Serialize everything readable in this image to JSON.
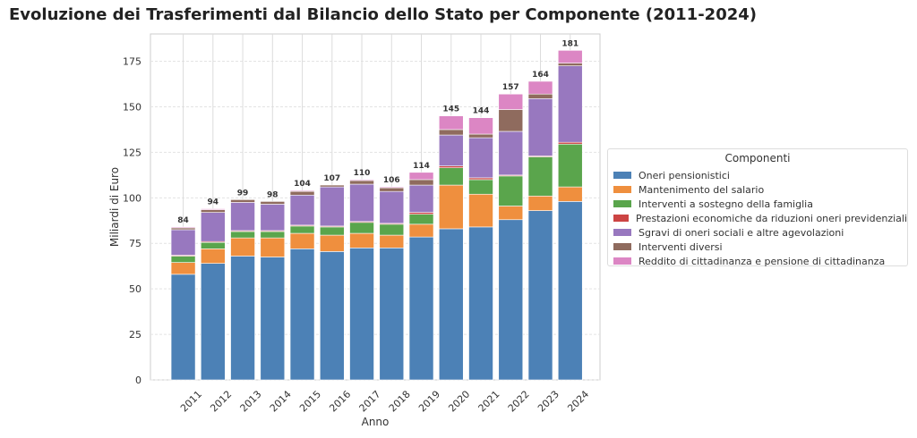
{
  "chart_data": {
    "type": "bar",
    "stacked": true,
    "title": "Evoluzione dei Trasferimenti dal Bilancio dello Stato per Componente (2011-2024)",
    "xlabel": "Anno",
    "ylabel": "Miliardi di Euro",
    "ylim": [
      0,
      190
    ],
    "yticks": [
      0,
      25,
      50,
      75,
      100,
      125,
      150,
      175
    ],
    "grid": true,
    "legend_title": "Componenti",
    "legend_placement": "right",
    "categories": [
      "2011",
      "2012",
      "2013",
      "2014",
      "2015",
      "2016",
      "2017",
      "2018",
      "2019",
      "2020",
      "2021",
      "2022",
      "2023",
      "2024"
    ],
    "totals": [
      84,
      94,
      99,
      98,
      104,
      107,
      110,
      106,
      114,
      145,
      144,
      157,
      164,
      181
    ],
    "series": [
      {
        "name": "Oneri pensionistici",
        "color": "#4c81b6",
        "values": [
          58,
          64,
          68,
          67.5,
          72,
          70.5,
          72.5,
          72.5,
          78.5,
          83,
          84,
          88,
          93,
          98
        ]
      },
      {
        "name": "Mantenimento del salario",
        "color": "#ef8f3e",
        "values": [
          6.5,
          8,
          10,
          10.5,
          8.5,
          9,
          8,
          7,
          7,
          24,
          18,
          7.5,
          8,
          8
        ]
      },
      {
        "name": "Interventi a sostegno della famiglia",
        "color": "#5aa54c",
        "values": [
          3.5,
          3.5,
          3.5,
          3.5,
          4,
          4.5,
          6,
          6,
          5.5,
          9.5,
          8,
          16.5,
          21.5,
          23.5
        ]
      },
      {
        "name": "Prestazioni economiche da riduzioni oneri previdenziali",
        "color": "#cc4443",
        "values": [
          0.5,
          0.5,
          0.5,
          0.5,
          0.5,
          0.5,
          0.5,
          0.5,
          1,
          1,
          1,
          0.5,
          0.5,
          1
        ]
      },
      {
        "name": "Sgravi di oneri sociali e altre agevolazioni",
        "color": "#9878bf",
        "values": [
          14,
          16,
          15.5,
          14.5,
          16.5,
          21.5,
          20.5,
          17.5,
          15,
          17,
          22,
          24,
          31.5,
          42
        ]
      },
      {
        "name": "Interventi diversi",
        "color": "#8f6b5e",
        "values": [
          1,
          1.5,
          1.5,
          1.5,
          2,
          1,
          2,
          2,
          3,
          3,
          2,
          12,
          2.5,
          1.5
        ]
      },
      {
        "name": "Reddito di cittadinanza e pensione di cittadinanza",
        "color": "#dc86c4",
        "values": [
          0.5,
          0.5,
          0,
          0,
          0.5,
          0,
          0.5,
          0.5,
          4,
          7.5,
          9,
          8.5,
          7,
          7
        ]
      }
    ]
  }
}
